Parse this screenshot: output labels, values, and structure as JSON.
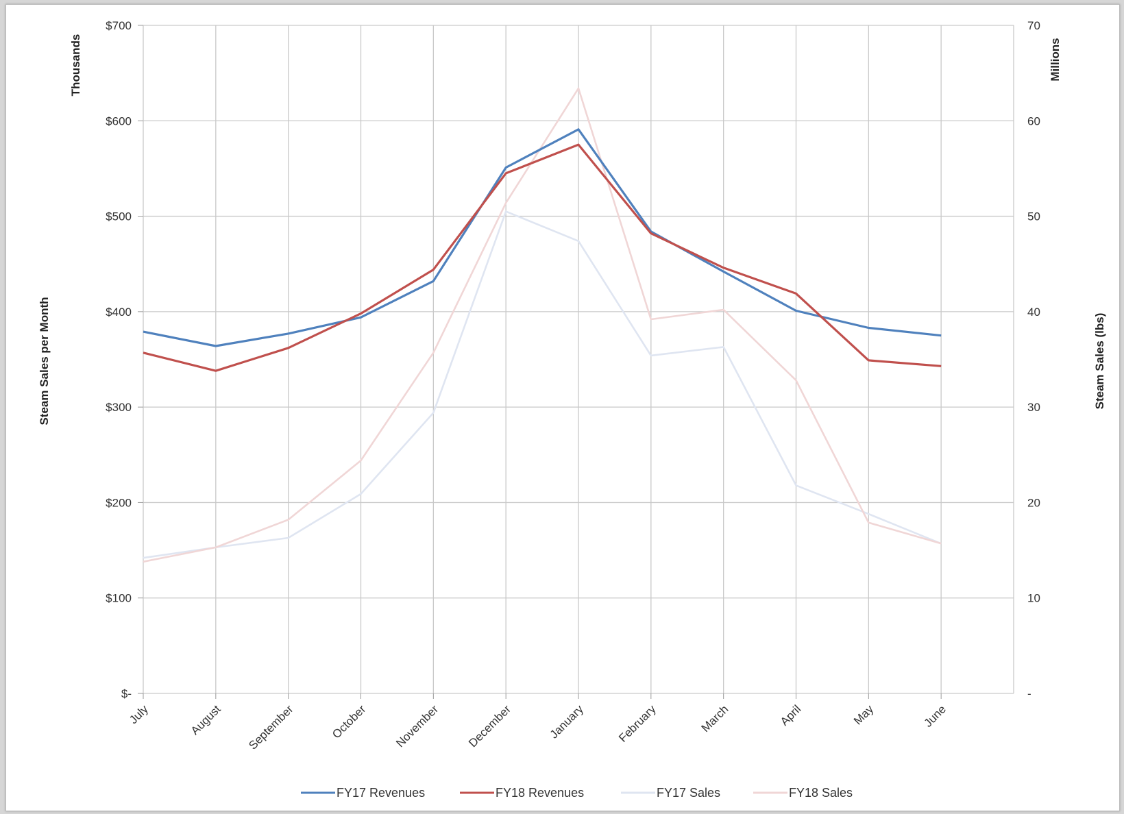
{
  "chart_data": {
    "type": "line",
    "categories": [
      "July",
      "August",
      "September",
      "October",
      "November",
      "December",
      "January",
      "February",
      "March",
      "April",
      "May",
      "June"
    ],
    "left_axis": {
      "label": "Steam Sales per Month",
      "unit": "Thousands",
      "ticks": [
        0,
        100,
        200,
        300,
        400,
        500,
        600,
        700
      ],
      "tick_labels": [
        "$-",
        "$100",
        "$200",
        "$300",
        "$400",
        "$500",
        "$600",
        "$700"
      ],
      "ylim": [
        0,
        700
      ]
    },
    "right_axis": {
      "label": "Steam Sales (lbs)",
      "unit": "Millions",
      "ticks": [
        0,
        10,
        20,
        30,
        40,
        50,
        60,
        70
      ],
      "tick_labels": [
        "-",
        "10",
        "20",
        "30",
        "40",
        "50",
        "60",
        "70"
      ],
      "ylim": [
        0,
        70
      ]
    },
    "series": [
      {
        "name": "FY17 Revenues",
        "axis": "left",
        "color": "#4f81bd",
        "values": [
          379,
          364,
          377,
          394,
          432,
          551,
          591,
          484,
          442,
          401,
          383,
          375
        ]
      },
      {
        "name": "FY18 Revenues",
        "axis": "left",
        "color": "#c0504d",
        "values": [
          357,
          338,
          362,
          398,
          444,
          545,
          575,
          482,
          446,
          419,
          349,
          343
        ]
      },
      {
        "name": "FY17 Sales",
        "axis": "right",
        "color": "#dfe5f1",
        "values": [
          14.2,
          15.3,
          16.3,
          20.9,
          29.4,
          50.5,
          47.4,
          35.4,
          36.3,
          21.8,
          18.8,
          15.7
        ]
      },
      {
        "name": "FY18 Sales",
        "axis": "right",
        "color": "#f0d6d6",
        "values": [
          13.8,
          15.3,
          18.2,
          24.4,
          35.7,
          51.4,
          63.4,
          39.2,
          40.2,
          32.8,
          17.9,
          15.7
        ]
      }
    ],
    "grid": true,
    "legend_position": "bottom"
  }
}
